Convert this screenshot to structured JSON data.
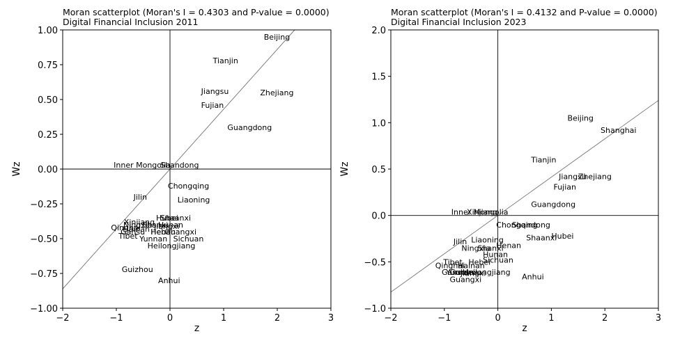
{
  "chart_data": [
    {
      "type": "scatter",
      "title": "Moran scatterplot (Moran's I = 0.4303 and P-value = 0.0000)",
      "subtitle": "Digital Financial Inclusion 2011",
      "xlabel": "z",
      "ylabel": "Wz",
      "xlim": [
        -2,
        3
      ],
      "ylim": [
        -1.0,
        1.0
      ],
      "xticks": [
        -2,
        -1,
        0,
        1,
        2,
        3
      ],
      "yticks": [
        -1.0,
        -0.75,
        -0.5,
        -0.25,
        0.0,
        0.25,
        0.5,
        0.75,
        1.0
      ],
      "xtick_labels": [
        "−2",
        "−1",
        "0",
        "1",
        "2",
        "3"
      ],
      "ytick_labels": [
        "−1.00",
        "−0.75",
        "−0.50",
        "−0.25",
        "0.00",
        "0.25",
        "0.50",
        "0.75",
        "1.00"
      ],
      "grid": false,
      "fit_slope": 0.4303,
      "points": [
        {
          "label": "Beijing",
          "x": 1.75,
          "y": 0.95
        },
        {
          "label": "Tianjin",
          "x": 0.8,
          "y": 0.78
        },
        {
          "label": "Jiangsu",
          "x": 0.58,
          "y": 0.56
        },
        {
          "label": "Zhejiang",
          "x": 1.68,
          "y": 0.55
        },
        {
          "label": "Fujian",
          "x": 0.58,
          "y": 0.46
        },
        {
          "label": "Guangdong",
          "x": 1.07,
          "y": 0.3
        },
        {
          "label": "Inner Mongolia",
          "x": -1.05,
          "y": 0.03
        },
        {
          "label": "Shandong",
          "x": -0.18,
          "y": 0.03
        },
        {
          "label": "Chongqing",
          "x": -0.04,
          "y": -0.12
        },
        {
          "label": "Jilin",
          "x": -0.68,
          "y": -0.2
        },
        {
          "label": "Liaoning",
          "x": 0.14,
          "y": -0.22
        },
        {
          "label": "Hubei",
          "x": -0.26,
          "y": -0.35
        },
        {
          "label": "Shaanxi",
          "x": -0.18,
          "y": -0.35
        },
        {
          "label": "Xinjiang",
          "x": -0.86,
          "y": -0.38
        },
        {
          "label": "Ningxia",
          "x": -0.87,
          "y": -0.4
        },
        {
          "label": "Shanxi",
          "x": -0.52,
          "y": -0.4
        },
        {
          "label": "Hunan",
          "x": -0.22,
          "y": -0.4
        },
        {
          "label": "Jiangxi",
          "x": -0.3,
          "y": -0.41
        },
        {
          "label": "Qinghai",
          "x": -1.1,
          "y": -0.42
        },
        {
          "label": "Hainan",
          "x": -0.88,
          "y": -0.43
        },
        {
          "label": "Gansu",
          "x": -0.92,
          "y": -0.45
        },
        {
          "label": "Henan",
          "x": -0.36,
          "y": -0.45
        },
        {
          "label": "Hebei",
          "x": -0.36,
          "y": -0.45
        },
        {
          "label": "Guangxi",
          "x": -0.1,
          "y": -0.45
        },
        {
          "label": "Tibet",
          "x": -0.96,
          "y": -0.48
        },
        {
          "label": "Yunnan",
          "x": -0.57,
          "y": -0.5
        },
        {
          "label": "Sichuan",
          "x": 0.06,
          "y": -0.5
        },
        {
          "label": "Heilongjiang",
          "x": -0.42,
          "y": -0.55
        },
        {
          "label": "Guizhou",
          "x": -0.9,
          "y": -0.72
        },
        {
          "label": "Anhui",
          "x": -0.22,
          "y": -0.8
        }
      ]
    },
    {
      "type": "scatter",
      "title": "Moran scatterplot (Moran's I = 0.4132 and P-value = 0.0000)",
      "subtitle": "Digital Financial Inclusion 2023",
      "xlabel": "z",
      "ylabel": "Wz",
      "xlim": [
        -2,
        3
      ],
      "ylim": [
        -1.0,
        2.0
      ],
      "xticks": [
        -2,
        -1,
        0,
        1,
        2,
        3
      ],
      "yticks": [
        -1.0,
        -0.5,
        0.0,
        0.5,
        1.0,
        1.5,
        2.0
      ],
      "xtick_labels": [
        "−2",
        "−1",
        "0",
        "1",
        "2",
        "3"
      ],
      "ytick_labels": [
        "−1.0",
        "−0.5",
        "0.0",
        "0.5",
        "1.0",
        "1.5",
        "2.0"
      ],
      "grid": false,
      "fit_slope": 0.4132,
      "points": [
        {
          "label": "Beijing",
          "x": 1.3,
          "y": 1.05
        },
        {
          "label": "Shanghai",
          "x": 1.92,
          "y": 0.92
        },
        {
          "label": "Tianjin",
          "x": 0.62,
          "y": 0.6
        },
        {
          "label": "Jiangsu",
          "x": 1.14,
          "y": 0.42
        },
        {
          "label": "Zhejiang",
          "x": 1.5,
          "y": 0.42
        },
        {
          "label": "Fujian",
          "x": 1.04,
          "y": 0.31
        },
        {
          "label": "Guangdong",
          "x": 0.62,
          "y": 0.12
        },
        {
          "label": "Xinjiang",
          "x": -0.58,
          "y": 0.04
        },
        {
          "label": "Inner Mongolia",
          "x": -0.87,
          "y": 0.04
        },
        {
          "label": "Chongqing",
          "x": -0.03,
          "y": -0.1
        },
        {
          "label": "Shandong",
          "x": 0.26,
          "y": -0.1
        },
        {
          "label": "Hubei",
          "x": 1.0,
          "y": -0.22
        },
        {
          "label": "Shaanxi",
          "x": 0.53,
          "y": -0.24
        },
        {
          "label": "Liaoning",
          "x": -0.5,
          "y": -0.26
        },
        {
          "label": "Jilin",
          "x": -0.83,
          "y": -0.28
        },
        {
          "label": "Henan",
          "x": -0.03,
          "y": -0.32
        },
        {
          "label": "Ningxia",
          "x": -0.68,
          "y": -0.35
        },
        {
          "label": "Shanxi",
          "x": -0.38,
          "y": -0.35
        },
        {
          "label": "Hunan",
          "x": -0.28,
          "y": -0.42
        },
        {
          "label": "Sichuan",
          "x": -0.28,
          "y": -0.48
        },
        {
          "label": "Tibet",
          "x": -1.02,
          "y": -0.5
        },
        {
          "label": "Hebei",
          "x": -0.55,
          "y": -0.5
        },
        {
          "label": "Qinghai",
          "x": -1.17,
          "y": -0.54
        },
        {
          "label": "Hainan",
          "x": -0.75,
          "y": -0.54
        },
        {
          "label": "Gansu",
          "x": -1.05,
          "y": -0.61
        },
        {
          "label": "Yunnan",
          "x": -0.97,
          "y": -0.61
        },
        {
          "label": "Guizhou",
          "x": -0.9,
          "y": -0.61
        },
        {
          "label": "Jiangxi",
          "x": -0.7,
          "y": -0.62
        },
        {
          "label": "Heilongjiang",
          "x": -0.66,
          "y": -0.61
        },
        {
          "label": "Guangxi",
          "x": -0.9,
          "y": -0.69
        },
        {
          "label": "Anhui",
          "x": 0.45,
          "y": -0.66
        }
      ]
    }
  ]
}
